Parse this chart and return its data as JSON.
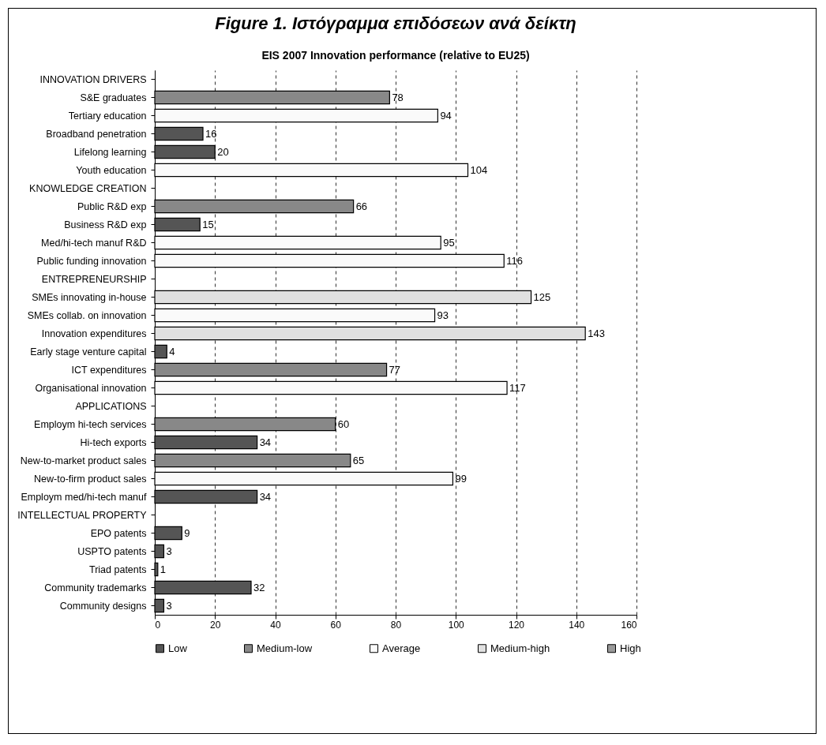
{
  "chart_data": {
    "type": "bar",
    "orientation": "horizontal",
    "title": "Figure 1. Ιστόγραμμα επιδόσεων ανά δείκτη",
    "subtitle": "EIS 2007 Innovation performance (relative to EU25)",
    "categories": [
      "INNOVATION DRIVERS",
      "S&E graduates",
      "Tertiary education",
      "Broadband penetration",
      "Lifelong learning",
      "Youth education",
      "KNOWLEDGE CREATION",
      "Public R&D exp",
      "Business R&D exp",
      "Med/hi-tech manuf R&D",
      "Public funding innovation",
      "ENTREPRENEURSHIP",
      "SMEs innovating in-house",
      "SMEs collab. on innovation",
      "Innovation expenditures",
      "Early stage venture capital",
      "ICT expenditures",
      "Organisational innovation",
      "APPLICATIONS",
      "Employm hi-tech services",
      "Hi-tech exports",
      "New-to-market product sales",
      "New-to-firm product sales",
      "Employm med/hi-tech manuf",
      "INTELLECTUAL PROPERTY",
      "EPO patents",
      "USPTO patents",
      "Triad patents",
      "Community trademarks",
      "Community designs"
    ],
    "series": [
      {
        "name": "Low",
        "color": "#555555",
        "values": [
          null,
          null,
          null,
          16,
          20,
          null,
          null,
          null,
          15,
          null,
          null,
          null,
          null,
          null,
          null,
          4,
          null,
          null,
          null,
          null,
          34,
          null,
          null,
          34,
          null,
          9,
          3,
          1,
          32,
          3
        ]
      },
      {
        "name": "Medium-low",
        "color": "#888888",
        "values": [
          null,
          78,
          null,
          null,
          null,
          null,
          null,
          66,
          null,
          null,
          null,
          null,
          null,
          null,
          null,
          null,
          77,
          null,
          null,
          60,
          null,
          65,
          null,
          null,
          null,
          null,
          null,
          null,
          null,
          null
        ]
      },
      {
        "name": "Average",
        "color": "#fafafa",
        "values": [
          null,
          null,
          94,
          null,
          null,
          104,
          null,
          null,
          null,
          95,
          116,
          null,
          null,
          93,
          null,
          null,
          null,
          117,
          null,
          null,
          null,
          null,
          99,
          null,
          null,
          null,
          null,
          null,
          null,
          null
        ]
      },
      {
        "name": "Medium-high",
        "color": "#e0e0e0",
        "values": [
          null,
          null,
          null,
          null,
          null,
          null,
          null,
          null,
          null,
          null,
          null,
          null,
          125,
          null,
          143,
          null,
          null,
          null,
          null,
          null,
          null,
          null,
          null,
          null,
          null,
          null,
          null,
          null,
          null,
          null
        ]
      },
      {
        "name": "High",
        "color": "#999999",
        "values": [
          null,
          null,
          null,
          null,
          null,
          null,
          null,
          null,
          null,
          null,
          null,
          null,
          null,
          null,
          null,
          null,
          null,
          null,
          null,
          null,
          null,
          null,
          null,
          null,
          null,
          null,
          null,
          null,
          null,
          null
        ]
      }
    ],
    "xlim": [
      0,
      160
    ],
    "xticks": [
      0,
      20,
      40,
      60,
      80,
      100,
      120,
      140,
      160
    ],
    "grid": "x",
    "legend": "bottom",
    "data_labels": true
  }
}
